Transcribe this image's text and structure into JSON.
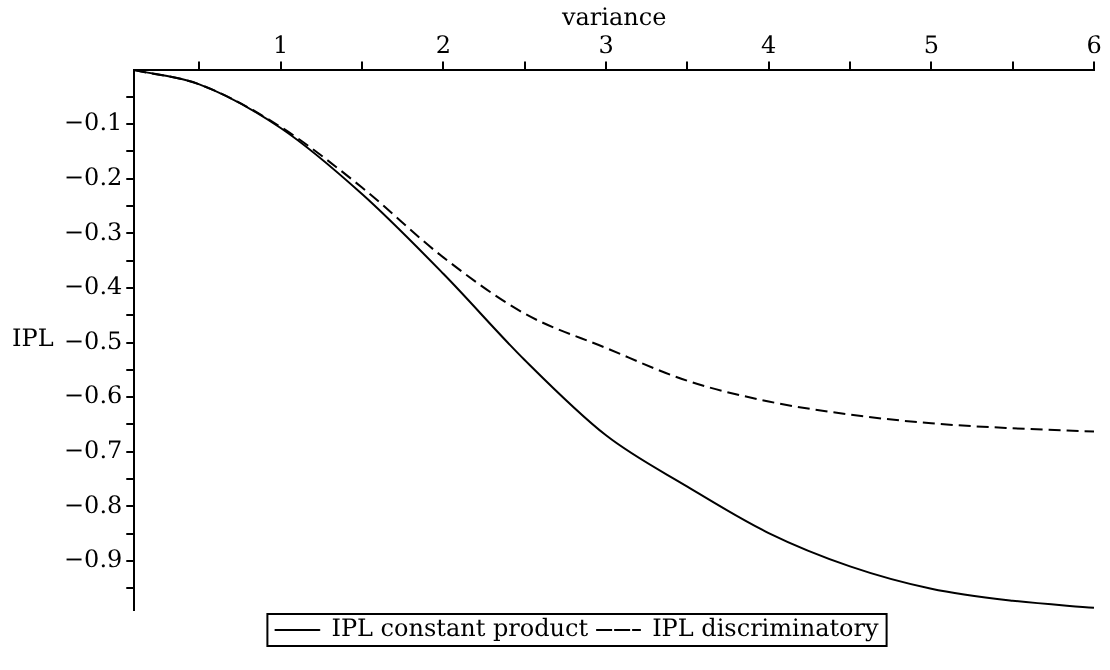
{
  "chart_data": {
    "type": "line",
    "xlabel": "variance",
    "ylabel": "IPL",
    "x": [
      0.1,
      0.5,
      1,
      1.5,
      2,
      2.5,
      3,
      3.5,
      4,
      4.5,
      5,
      5.5,
      6
    ],
    "series": [
      {
        "name": "IPL constant product",
        "color": "#000000",
        "line_style": "solid",
        "values": [
          -0.001,
          -0.027,
          -0.107,
          -0.228,
          -0.374,
          -0.532,
          -0.67,
          -0.764,
          -0.849,
          -0.91,
          -0.951,
          -0.973,
          -0.986
        ]
      },
      {
        "name": "IPL discriminatory",
        "color": "#000000",
        "line_style": "dashed",
        "values": [
          -0.001,
          -0.027,
          -0.105,
          -0.216,
          -0.344,
          -0.447,
          -0.51,
          -0.57,
          -0.608,
          -0.632,
          -0.648,
          -0.657,
          -0.663
        ]
      }
    ],
    "xlim": [
      0.1,
      6
    ],
    "xticks": [
      {
        "value": 0.5,
        "label": null
      },
      1,
      {
        "value": 1.5,
        "label": null
      },
      2,
      {
        "value": 2.5,
        "label": null
      },
      3,
      {
        "value": 3.5,
        "label": null
      },
      4,
      {
        "value": 4.5,
        "label": null
      },
      5,
      {
        "value": 5.5,
        "label": null
      },
      6
    ],
    "ylim": [
      -0.99,
      0
    ],
    "yticks": [
      {
        "value": -0.05,
        "label": null
      },
      {
        "value": -0.1,
        "label": "−0.1"
      },
      {
        "value": -0.15,
        "label": null
      },
      {
        "value": -0.2,
        "label": "−0.2"
      },
      {
        "value": -0.25,
        "label": null
      },
      {
        "value": -0.3,
        "label": "−0.3"
      },
      {
        "value": -0.35,
        "label": null
      },
      {
        "value": -0.4,
        "label": "−0.4"
      },
      {
        "value": -0.45,
        "label": null
      },
      {
        "value": -0.5,
        "label": "−0.5"
      },
      {
        "value": -0.55,
        "label": null
      },
      {
        "value": -0.6,
        "label": "−0.6"
      },
      {
        "value": -0.65,
        "label": null
      },
      {
        "value": -0.7,
        "label": "−0.7"
      },
      {
        "value": -0.75,
        "label": null
      },
      {
        "value": -0.8,
        "label": "−0.8"
      },
      {
        "value": -0.85,
        "label": null
      },
      {
        "value": -0.9,
        "label": "−0.9"
      },
      {
        "value": -0.95,
        "label": null
      }
    ],
    "grid": false,
    "legend": "bottom",
    "marker": "none"
  }
}
